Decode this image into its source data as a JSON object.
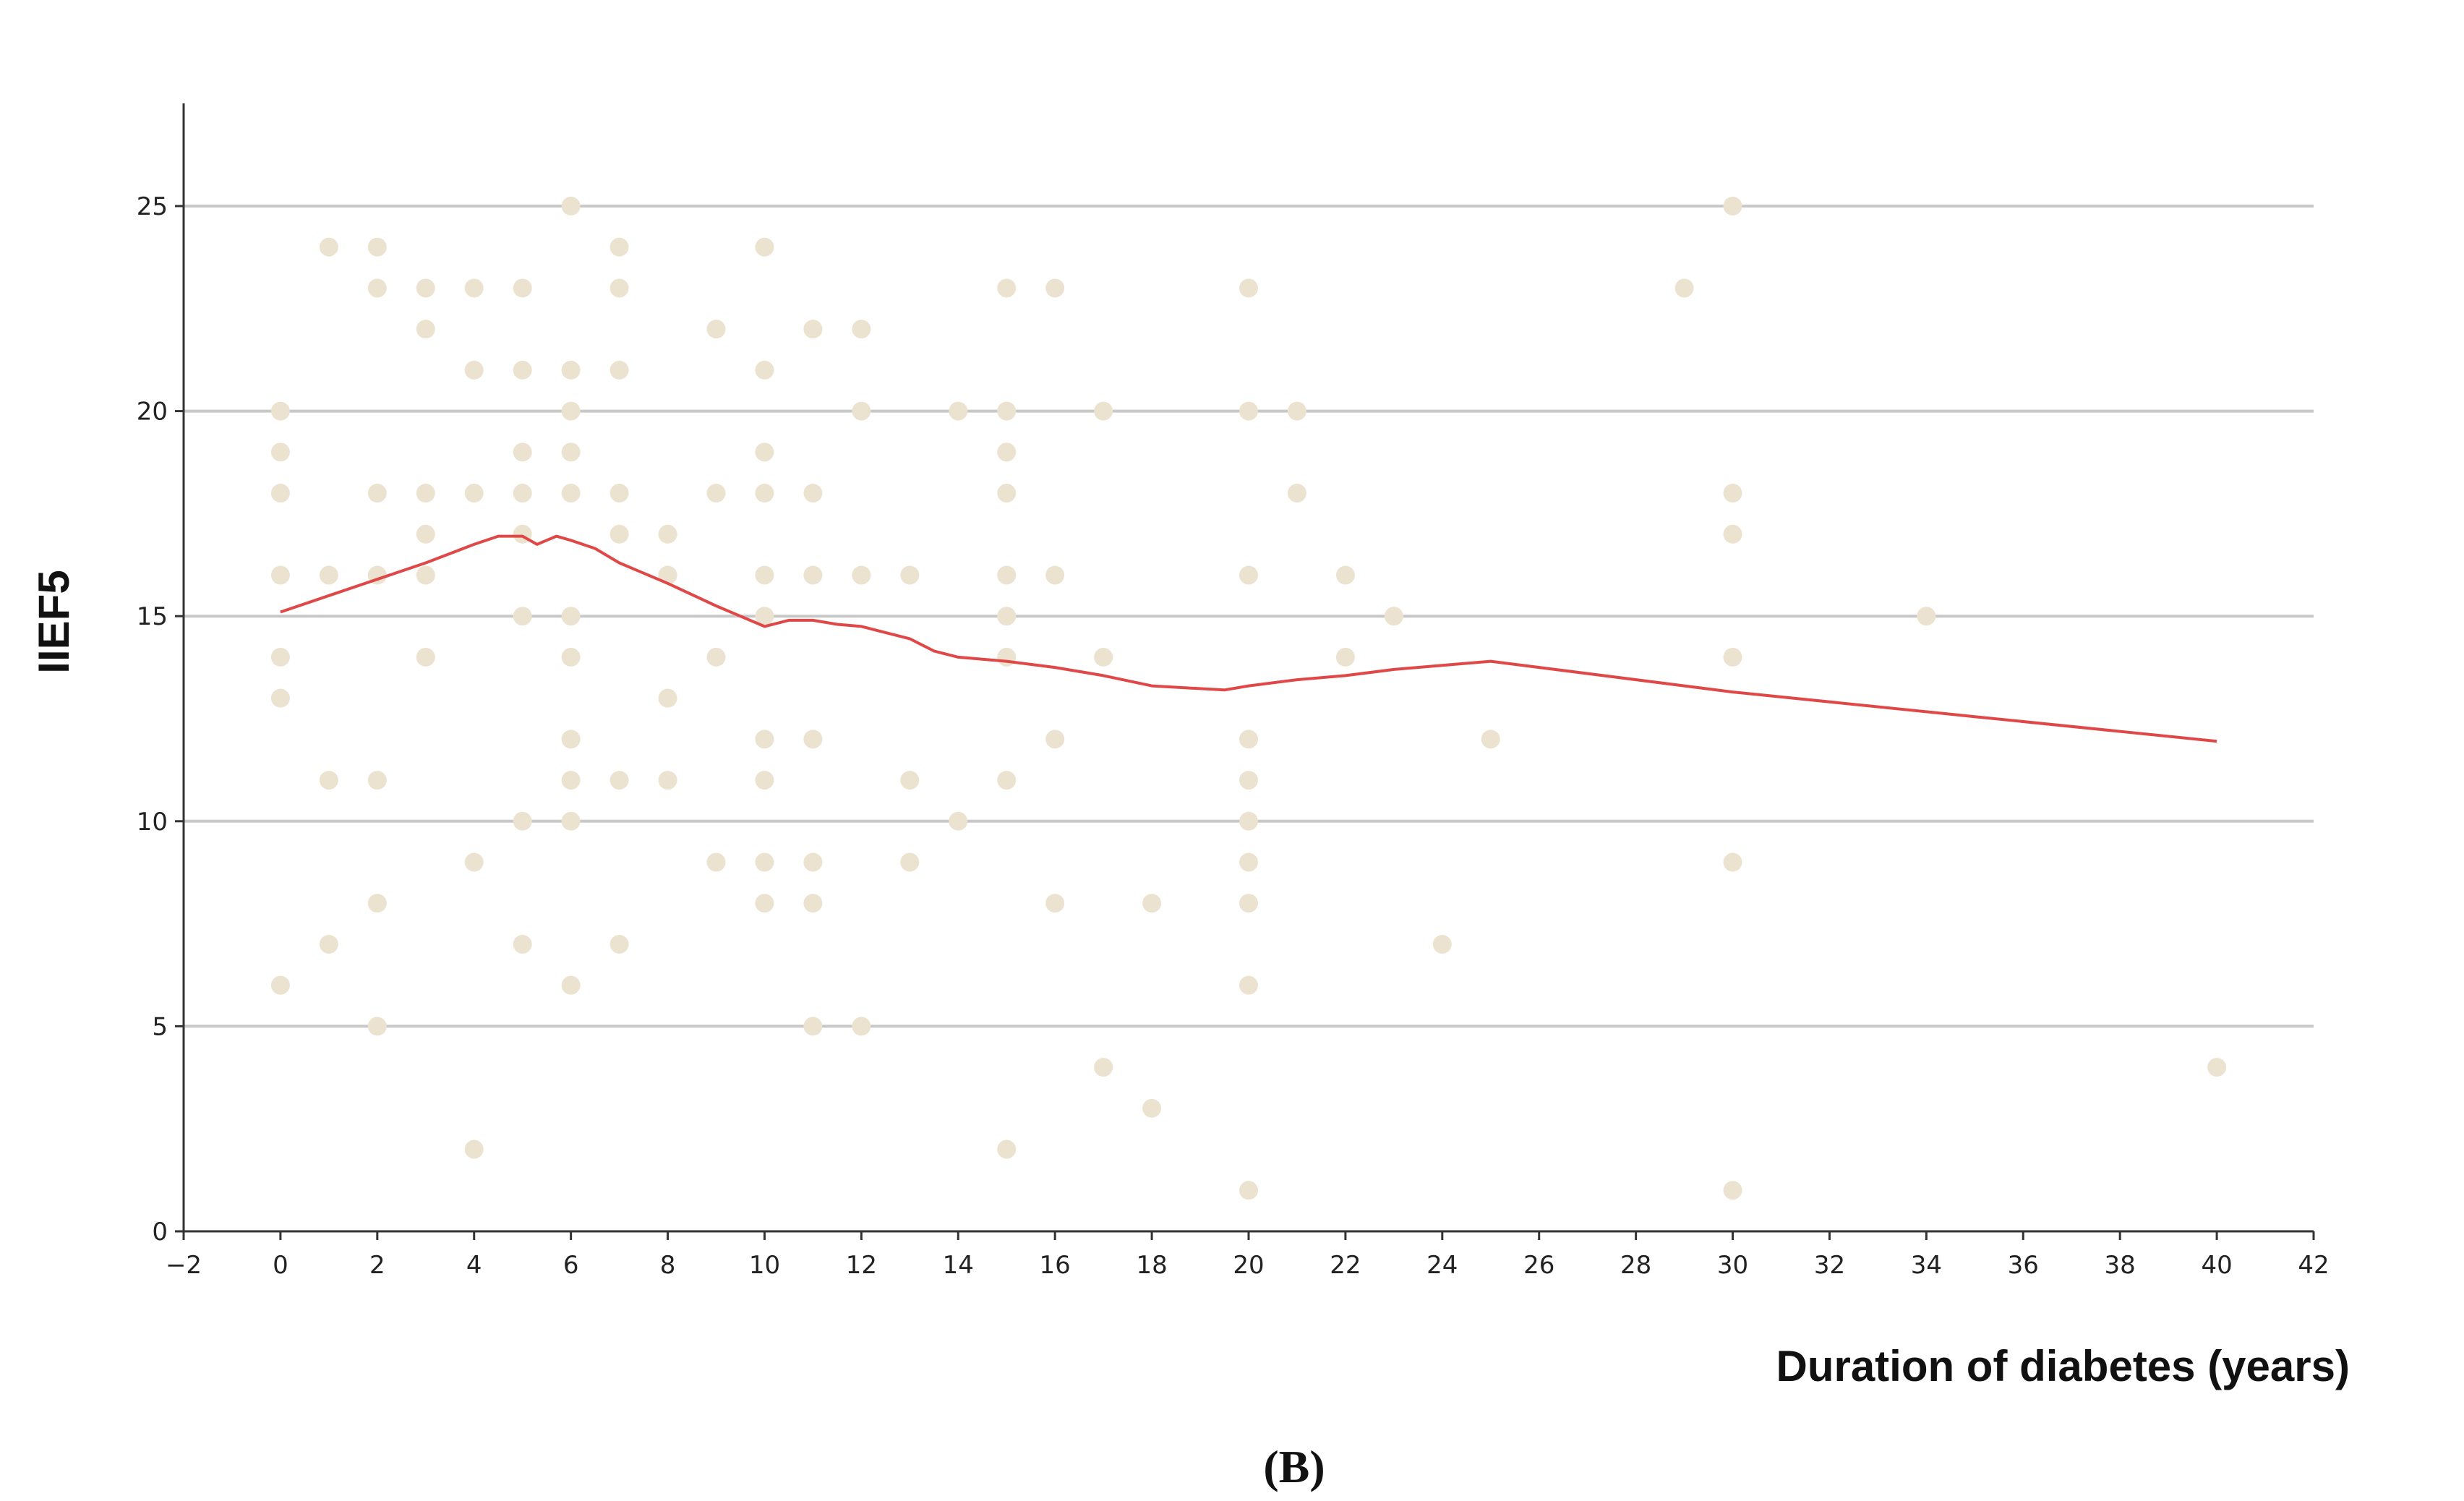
{
  "chart_data": {
    "type": "scatter",
    "title": "",
    "xlabel": "Duration of diabetes (years)",
    "ylabel": "IIEF5",
    "xlim": [
      -2,
      42
    ],
    "ylim": [
      0,
      27.5
    ],
    "x_ticks": [
      -2,
      0,
      2,
      4,
      6,
      8,
      10,
      12,
      14,
      16,
      18,
      20,
      22,
      24,
      26,
      28,
      30,
      32,
      34,
      36,
      38,
      40,
      42
    ],
    "y_ticks": [
      0,
      5,
      10,
      15,
      20,
      25
    ],
    "grid": "horizontal",
    "point_color": "#ebe3cf",
    "line_color": "#e04848",
    "points": [
      [
        0,
        20
      ],
      [
        0,
        19
      ],
      [
        0,
        18
      ],
      [
        0,
        16
      ],
      [
        0,
        14
      ],
      [
        0,
        13
      ],
      [
        0,
        6
      ],
      [
        1,
        24
      ],
      [
        1,
        16
      ],
      [
        1,
        11
      ],
      [
        1,
        7
      ],
      [
        2,
        24
      ],
      [
        2,
        23
      ],
      [
        2,
        18
      ],
      [
        2,
        16
      ],
      [
        2,
        11
      ],
      [
        2,
        8
      ],
      [
        2,
        5
      ],
      [
        3,
        23
      ],
      [
        3,
        22
      ],
      [
        3,
        18
      ],
      [
        3,
        17
      ],
      [
        3,
        16
      ],
      [
        3,
        14
      ],
      [
        4,
        23
      ],
      [
        4,
        21
      ],
      [
        4,
        18
      ],
      [
        4,
        9
      ],
      [
        4,
        2
      ],
      [
        5,
        23
      ],
      [
        5,
        21
      ],
      [
        5,
        19
      ],
      [
        5,
        18
      ],
      [
        5,
        17
      ],
      [
        5,
        15
      ],
      [
        5,
        10
      ],
      [
        5,
        7
      ],
      [
        6,
        25
      ],
      [
        6,
        21
      ],
      [
        6,
        20
      ],
      [
        6,
        19
      ],
      [
        6,
        18
      ],
      [
        6,
        15
      ],
      [
        6,
        14
      ],
      [
        6,
        12
      ],
      [
        6,
        11
      ],
      [
        6,
        10
      ],
      [
        6,
        6
      ],
      [
        7,
        24
      ],
      [
        7,
        23
      ],
      [
        7,
        21
      ],
      [
        7,
        18
      ],
      [
        7,
        17
      ],
      [
        7,
        11
      ],
      [
        7,
        7
      ],
      [
        8,
        17
      ],
      [
        8,
        16
      ],
      [
        8,
        13
      ],
      [
        8,
        11
      ],
      [
        9,
        22
      ],
      [
        9,
        18
      ],
      [
        9,
        14
      ],
      [
        9,
        9
      ],
      [
        10,
        24
      ],
      [
        10,
        21
      ],
      [
        10,
        19
      ],
      [
        10,
        18
      ],
      [
        10,
        16
      ],
      [
        10,
        15
      ],
      [
        10,
        12
      ],
      [
        10,
        11
      ],
      [
        10,
        9
      ],
      [
        10,
        8
      ],
      [
        11,
        22
      ],
      [
        11,
        18
      ],
      [
        11,
        16
      ],
      [
        11,
        12
      ],
      [
        11,
        9
      ],
      [
        11,
        8
      ],
      [
        11,
        5
      ],
      [
        12,
        22
      ],
      [
        12,
        20
      ],
      [
        12,
        16
      ],
      [
        12,
        5
      ],
      [
        13,
        16
      ],
      [
        13,
        11
      ],
      [
        13,
        9
      ],
      [
        14,
        20
      ],
      [
        14,
        10
      ],
      [
        15,
        23
      ],
      [
        15,
        20
      ],
      [
        15,
        19
      ],
      [
        15,
        18
      ],
      [
        15,
        16
      ],
      [
        15,
        15
      ],
      [
        15,
        14
      ],
      [
        15,
        11
      ],
      [
        15,
        2
      ],
      [
        16,
        23
      ],
      [
        16,
        16
      ],
      [
        16,
        12
      ],
      [
        16,
        8
      ],
      [
        17,
        20
      ],
      [
        17,
        14
      ],
      [
        17,
        4
      ],
      [
        18,
        8
      ],
      [
        18,
        3
      ],
      [
        20,
        23
      ],
      [
        20,
        20
      ],
      [
        20,
        16
      ],
      [
        20,
        12
      ],
      [
        20,
        11
      ],
      [
        20,
        10
      ],
      [
        20,
        9
      ],
      [
        20,
        8
      ],
      [
        20,
        6
      ],
      [
        20,
        1
      ],
      [
        21,
        20
      ],
      [
        21,
        18
      ],
      [
        22,
        16
      ],
      [
        22,
        14
      ],
      [
        23,
        15
      ],
      [
        24,
        7
      ],
      [
        25,
        12
      ],
      [
        29,
        23
      ],
      [
        30,
        25
      ],
      [
        30,
        18
      ],
      [
        30,
        17
      ],
      [
        30,
        14
      ],
      [
        30,
        9
      ],
      [
        30,
        1
      ],
      [
        34,
        15
      ],
      [
        40,
        4
      ]
    ],
    "fit_line": [
      [
        0,
        15.1
      ],
      [
        1,
        15.5
      ],
      [
        2,
        15.9
      ],
      [
        3,
        16.3
      ],
      [
        4,
        16.75
      ],
      [
        4.5,
        16.95
      ],
      [
        5,
        16.95
      ],
      [
        5.3,
        16.75
      ],
      [
        5.7,
        16.95
      ],
      [
        6,
        16.85
      ],
      [
        6.5,
        16.65
      ],
      [
        7,
        16.3
      ],
      [
        8,
        15.8
      ],
      [
        9,
        15.25
      ],
      [
        10,
        14.75
      ],
      [
        10.5,
        14.9
      ],
      [
        11,
        14.9
      ],
      [
        11.5,
        14.8
      ],
      [
        12,
        14.75
      ],
      [
        13,
        14.45
      ],
      [
        13.5,
        14.15
      ],
      [
        14,
        14.0
      ],
      [
        15,
        13.9
      ],
      [
        16,
        13.75
      ],
      [
        17,
        13.55
      ],
      [
        18,
        13.3
      ],
      [
        19.5,
        13.2
      ],
      [
        20,
        13.3
      ],
      [
        21,
        13.45
      ],
      [
        22,
        13.55
      ],
      [
        23,
        13.7
      ],
      [
        24,
        13.8
      ],
      [
        25,
        13.9
      ],
      [
        30,
        13.15
      ],
      [
        35,
        12.55
      ],
      [
        40,
        11.95
      ]
    ],
    "panel_label": "(B)"
  }
}
